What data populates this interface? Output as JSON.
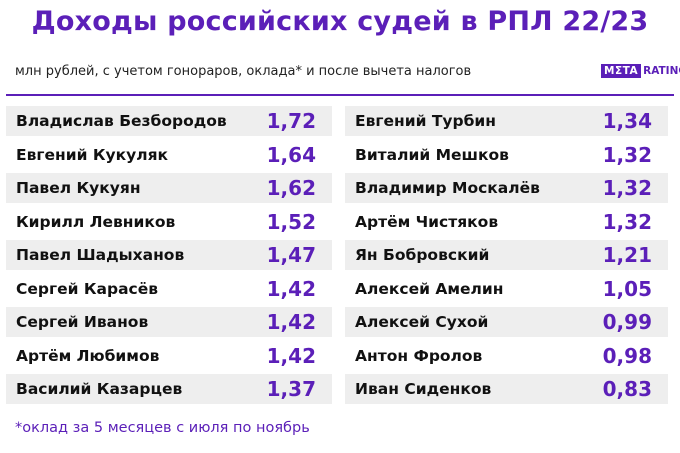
{
  "title": "Доходы российских судей в РПЛ 22/23",
  "subtitle": "млн рублей, с учетом гонораров, оклада* и после вычета налогов",
  "logo": {
    "meta": "MΣTA",
    "ratings": "RATINGS"
  },
  "footnote": "*оклад за 5 месяцев с июля по ноябрь",
  "colors": {
    "accent": "#5b1fb8",
    "row_shade": "#eeeeee",
    "text": "#111111"
  },
  "chart_data": {
    "type": "table",
    "title": "Доходы российских судей в РПЛ 22/23",
    "subtitle": "млн рублей, с учетом гонораров, оклада* и после вычета налогов",
    "left": [
      {
        "name": "Владислав Безбородов",
        "value": "1,72"
      },
      {
        "name": "Евгений Кукуляк",
        "value": "1,64"
      },
      {
        "name": "Павел Кукуян",
        "value": "1,62"
      },
      {
        "name": "Кирилл Левников",
        "value": "1,52"
      },
      {
        "name": "Павел Шадыханов",
        "value": "1,47"
      },
      {
        "name": "Сергей Карасёв",
        "value": "1,42"
      },
      {
        "name": "Сергей Иванов",
        "value": "1,42"
      },
      {
        "name": "Артём Любимов",
        "value": "1,42"
      },
      {
        "name": "Василий Казарцев",
        "value": "1,37"
      }
    ],
    "right": [
      {
        "name": "Евгений Турбин",
        "value": "1,34"
      },
      {
        "name": "Виталий Мешков",
        "value": "1,32"
      },
      {
        "name": "Владимир Москалёв",
        "value": "1,32"
      },
      {
        "name": "Артём Чистяков",
        "value": "1,32"
      },
      {
        "name": "Ян Бобровский",
        "value": "1,21"
      },
      {
        "name": "Алексей Амелин",
        "value": "1,05"
      },
      {
        "name": "Алексей Сухой",
        "value": "0,99"
      },
      {
        "name": "Антон Фролов",
        "value": "0,98"
      },
      {
        "name": "Иван Сиденков",
        "value": "0,83"
      }
    ]
  }
}
